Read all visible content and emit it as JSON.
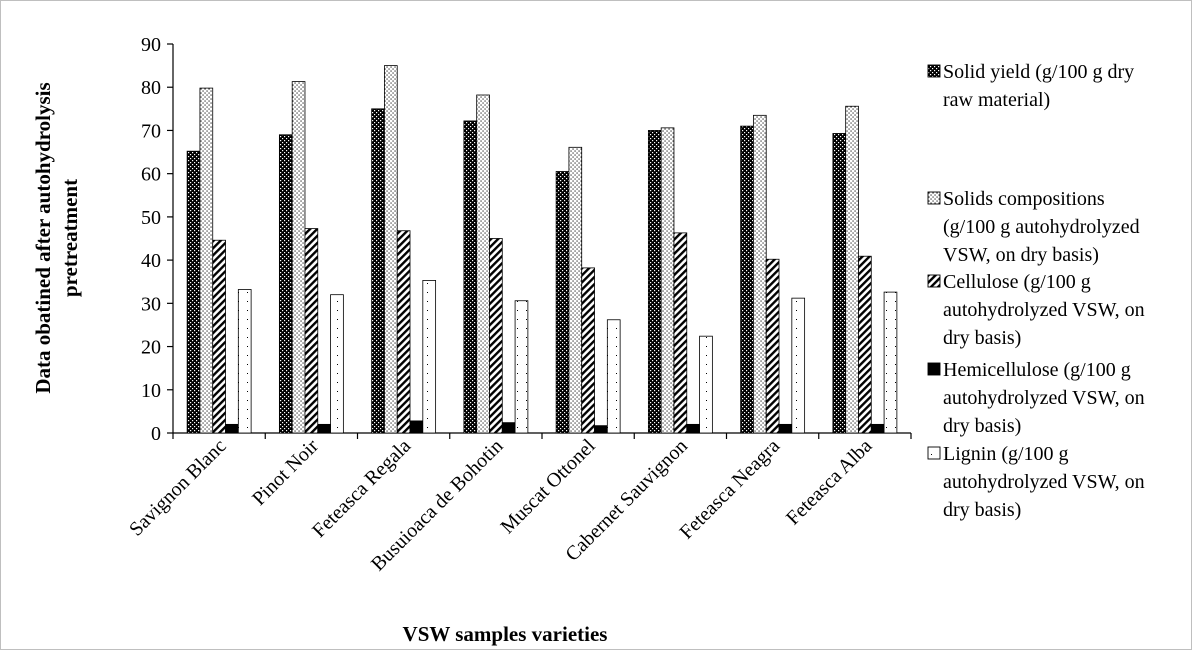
{
  "chart_data": {
    "type": "bar",
    "title": "",
    "xlabel": "VSW samples varieties",
    "ylabel": "Data obatined after autohydrolysis pretreatment",
    "ylim": [
      0,
      90
    ],
    "yticks": [
      0,
      10,
      20,
      30,
      40,
      50,
      60,
      70,
      80,
      90
    ],
    "grid": false,
    "legend_position": "right",
    "categories": [
      "Savignon Blanc",
      "Pinot Noir",
      "Feteasca Regala",
      "Busuioaca de Bohotin",
      "Muscat Ottonel",
      "Cabernet Sauvignon",
      "Feteasca Neagra",
      "Feteasca Alba"
    ],
    "series": [
      {
        "name": "Solid yield (g/100 g dry raw material)",
        "legend_lines": [
          "Solid yield (g/100 g dry",
          "raw material)"
        ],
        "pattern": "checker",
        "values": [
          65.2,
          69.0,
          75.0,
          72.2,
          60.5,
          70.0,
          71.0,
          69.3
        ]
      },
      {
        "name": "Solids compositions (g/100 g autohydrolyzed VSW, on dry basis)",
        "legend_lines": [
          "Solids compositions",
          "(g/100 g autohydrolyzed",
          "VSW, on dry basis)"
        ],
        "pattern": "dots",
        "values": [
          79.8,
          81.3,
          85.0,
          78.2,
          66.1,
          70.6,
          73.5,
          75.6
        ]
      },
      {
        "name": "Cellulose  (g/100 g autohydrolyzed VSW, on dry basis)",
        "legend_lines": [
          "Cellulose  (g/100 g",
          "autohydrolyzed VSW, on",
          "dry basis)"
        ],
        "pattern": "diagonal",
        "values": [
          44.6,
          47.3,
          46.8,
          45.0,
          38.2,
          46.3,
          40.2,
          40.9
        ]
      },
      {
        "name": "Hemicellulose (g/100 g autohydrolyzed VSW, on dry basis)",
        "legend_lines": [
          "Hemicellulose (g/100 g",
          "autohydrolyzed VSW, on",
          "dry basis)"
        ],
        "pattern": "solid",
        "values": [
          2.0,
          2.0,
          2.8,
          2.4,
          1.7,
          2.0,
          2.0,
          2.0
        ]
      },
      {
        "name": "Lignin (g/100 g autohydrolyzed VSW, on dry basis)",
        "legend_lines": [
          "Lignin (g/100 g",
          "autohydrolyzed VSW, on",
          "dry basis)"
        ],
        "pattern": "sparse",
        "values": [
          33.2,
          32.0,
          35.3,
          30.6,
          26.2,
          22.4,
          31.2,
          32.6
        ]
      }
    ]
  },
  "colors": {
    "bar_outline": "#000000",
    "ink": "#000000",
    "background": "#ffffff",
    "frame": "#bfbfbf"
  }
}
